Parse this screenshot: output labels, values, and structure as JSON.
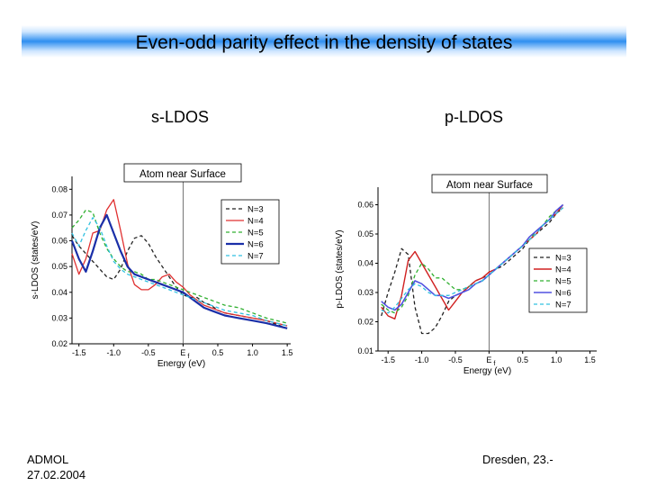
{
  "slide": {
    "title": "Even-odd parity effect in the density of states",
    "left_label": "s-LDOS",
    "right_label": "p-LDOS",
    "footer_left_line1": "ADMOL",
    "footer_left_line2": "27.02.2004",
    "footer_right": "Dresden, 23.-"
  },
  "chart_data": [
    {
      "type": "line",
      "title": "Atom near Surface",
      "xlabel": "Energy (eV)",
      "ylabel": "s-LDOS (states/eV)",
      "xlim": [
        -1.6,
        1.55
      ],
      "ylim": [
        0.02,
        0.085
      ],
      "xticks": [
        -1.5,
        -1.0,
        -0.5,
        0.0,
        0.5,
        1.0,
        1.5
      ],
      "xticklabels": [
        "-1.5",
        "-1.0",
        "-0.5",
        "E",
        "0.5",
        "1.0",
        "1.5"
      ],
      "fermi_subscript": "f",
      "yticks": [
        0.02,
        0.03,
        0.04,
        0.05,
        0.06,
        0.07,
        0.08
      ],
      "yticklabels": [
        "0.02",
        "0.03",
        "0.04",
        "0.05",
        "0.06",
        "0.07",
        "0.08"
      ],
      "fermi_line": 0.0,
      "legend_position": "right",
      "series": [
        {
          "name": "N=3",
          "color": "#222222",
          "dash": "4,3",
          "width": 1.3,
          "x": [
            -1.6,
            -1.5,
            -1.4,
            -1.3,
            -1.2,
            -1.1,
            -1.0,
            -0.9,
            -0.8,
            -0.7,
            -0.6,
            -0.5,
            -0.4,
            -0.3,
            -0.2,
            -0.1,
            0.0,
            0.1,
            0.2,
            0.3,
            0.4,
            0.5,
            0.6,
            0.8,
            1.0,
            1.2,
            1.5
          ],
          "y": [
            0.062,
            0.058,
            0.055,
            0.052,
            0.049,
            0.046,
            0.045,
            0.049,
            0.056,
            0.061,
            0.062,
            0.059,
            0.054,
            0.05,
            0.046,
            0.042,
            0.039,
            0.038,
            0.038,
            0.036,
            0.035,
            0.033,
            0.032,
            0.031,
            0.03,
            0.029,
            0.026
          ]
        },
        {
          "name": "N=4",
          "color": "#e03030",
          "dash": "",
          "width": 1.3,
          "x": [
            -1.6,
            -1.5,
            -1.4,
            -1.3,
            -1.2,
            -1.1,
            -1.0,
            -0.9,
            -0.8,
            -0.7,
            -0.6,
            -0.5,
            -0.4,
            -0.3,
            -0.2,
            -0.1,
            0.0,
            0.1,
            0.2,
            0.3,
            0.4,
            0.5,
            0.6,
            0.8,
            1.0,
            1.2,
            1.5
          ],
          "y": [
            0.055,
            0.047,
            0.053,
            0.063,
            0.064,
            0.072,
            0.076,
            0.064,
            0.051,
            0.043,
            0.041,
            0.041,
            0.043,
            0.046,
            0.047,
            0.044,
            0.042,
            0.039,
            0.037,
            0.035,
            0.034,
            0.033,
            0.032,
            0.031,
            0.03,
            0.029,
            0.027
          ]
        },
        {
          "name": "N=5",
          "color": "#30b030",
          "dash": "4,3",
          "width": 1.3,
          "x": [
            -1.6,
            -1.5,
            -1.4,
            -1.3,
            -1.2,
            -1.1,
            -1.0,
            -0.9,
            -0.8,
            -0.7,
            -0.6,
            -0.5,
            -0.4,
            -0.3,
            -0.2,
            -0.1,
            0.0,
            0.1,
            0.2,
            0.3,
            0.4,
            0.5,
            0.6,
            0.8,
            1.0,
            1.2,
            1.5
          ],
          "y": [
            0.065,
            0.068,
            0.072,
            0.071,
            0.063,
            0.057,
            0.053,
            0.05,
            0.048,
            0.048,
            0.047,
            0.045,
            0.045,
            0.044,
            0.043,
            0.042,
            0.041,
            0.04,
            0.039,
            0.038,
            0.037,
            0.036,
            0.035,
            0.034,
            0.032,
            0.03,
            0.028
          ]
        },
        {
          "name": "N=6",
          "color": "#1a2fa8",
          "dash": "",
          "width": 2.2,
          "x": [
            -1.6,
            -1.5,
            -1.4,
            -1.3,
            -1.2,
            -1.1,
            -1.0,
            -0.9,
            -0.8,
            -0.7,
            -0.6,
            -0.5,
            -0.4,
            -0.3,
            -0.2,
            -0.1,
            0.0,
            0.1,
            0.2,
            0.3,
            0.4,
            0.5,
            0.6,
            0.8,
            1.0,
            1.2,
            1.5
          ],
          "y": [
            0.06,
            0.053,
            0.048,
            0.056,
            0.065,
            0.07,
            0.063,
            0.056,
            0.05,
            0.047,
            0.046,
            0.045,
            0.044,
            0.043,
            0.042,
            0.041,
            0.04,
            0.038,
            0.036,
            0.034,
            0.033,
            0.032,
            0.031,
            0.03,
            0.029,
            0.028,
            0.026
          ]
        },
        {
          "name": "N=7",
          "color": "#30c0e0",
          "dash": "4,3",
          "width": 1.3,
          "x": [
            -1.6,
            -1.5,
            -1.4,
            -1.3,
            -1.2,
            -1.1,
            -1.0,
            -0.9,
            -0.8,
            -0.7,
            -0.6,
            -0.5,
            -0.4,
            -0.3,
            -0.2,
            -0.1,
            0.0,
            0.1,
            0.2,
            0.3,
            0.4,
            0.5,
            0.6,
            0.8,
            1.0,
            1.2,
            1.5
          ],
          "y": [
            0.063,
            0.058,
            0.064,
            0.069,
            0.065,
            0.058,
            0.052,
            0.049,
            0.047,
            0.046,
            0.045,
            0.044,
            0.043,
            0.042,
            0.041,
            0.04,
            0.039,
            0.038,
            0.037,
            0.036,
            0.035,
            0.034,
            0.033,
            0.032,
            0.031,
            0.029,
            0.027
          ]
        }
      ]
    },
    {
      "type": "line",
      "title": "Atom near Surface",
      "xlabel": "Energy (eV)",
      "ylabel": "p-LDOS (states/eV)",
      "xlim": [
        -1.65,
        1.6
      ],
      "ylim": [
        0.01,
        0.066
      ],
      "xticks": [
        -1.5,
        -1.0,
        -0.5,
        0.0,
        0.5,
        1.0,
        1.5
      ],
      "xticklabels": [
        "-1.5",
        "-1.0",
        "-0.5",
        "E",
        "0.5",
        "1.0",
        "1.5"
      ],
      "fermi_subscript": "f",
      "yticks": [
        0.01,
        0.02,
        0.03,
        0.04,
        0.05,
        0.06
      ],
      "yticklabels": [
        "0.01",
        "0.02",
        "0.03",
        "0.04",
        "0.05",
        "0.06"
      ],
      "fermi_line": 0.0,
      "legend_position": "right",
      "series": [
        {
          "name": "N=3",
          "color": "#222222",
          "dash": "4,3",
          "width": 1.3,
          "x": [
            -1.6,
            -1.5,
            -1.4,
            -1.3,
            -1.2,
            -1.1,
            -1.0,
            -0.9,
            -0.8,
            -0.7,
            -0.6,
            -0.5,
            -0.4,
            -0.3,
            -0.2,
            -0.1,
            0.0,
            0.1,
            0.2,
            0.3,
            0.4,
            0.5,
            0.6,
            0.7,
            0.8,
            0.9,
            1.0,
            1.1
          ],
          "y": [
            0.022,
            0.03,
            0.037,
            0.045,
            0.043,
            0.025,
            0.016,
            0.016,
            0.018,
            0.022,
            0.027,
            0.029,
            0.03,
            0.032,
            0.034,
            0.035,
            0.036,
            0.038,
            0.039,
            0.041,
            0.043,
            0.045,
            0.048,
            0.05,
            0.052,
            0.054,
            0.057,
            0.059
          ]
        },
        {
          "name": "N=4",
          "color": "#d02020",
          "dash": "",
          "width": 1.4,
          "x": [
            -1.6,
            -1.5,
            -1.4,
            -1.3,
            -1.2,
            -1.1,
            -1.0,
            -0.9,
            -0.8,
            -0.7,
            -0.6,
            -0.5,
            -0.4,
            -0.3,
            -0.2,
            -0.1,
            0.0,
            0.1,
            0.2,
            0.3,
            0.4,
            0.5,
            0.6,
            0.7,
            0.8,
            0.9,
            1.0,
            1.1
          ],
          "y": [
            0.025,
            0.022,
            0.021,
            0.029,
            0.041,
            0.044,
            0.04,
            0.036,
            0.032,
            0.028,
            0.024,
            0.027,
            0.03,
            0.032,
            0.034,
            0.035,
            0.037,
            0.038,
            0.04,
            0.042,
            0.044,
            0.046,
            0.048,
            0.05,
            0.053,
            0.055,
            0.057,
            0.06
          ]
        },
        {
          "name": "N=5",
          "color": "#30b030",
          "dash": "4,3",
          "width": 1.3,
          "x": [
            -1.6,
            -1.5,
            -1.4,
            -1.3,
            -1.2,
            -1.1,
            -1.0,
            -0.9,
            -0.8,
            -0.7,
            -0.6,
            -0.5,
            -0.4,
            -0.3,
            -0.2,
            -0.1,
            0.0,
            0.1,
            0.2,
            0.3,
            0.4,
            0.5,
            0.6,
            0.7,
            0.8,
            0.9,
            1.0,
            1.1
          ],
          "y": [
            0.026,
            0.024,
            0.023,
            0.025,
            0.029,
            0.036,
            0.04,
            0.038,
            0.035,
            0.035,
            0.033,
            0.031,
            0.031,
            0.032,
            0.033,
            0.034,
            0.036,
            0.038,
            0.04,
            0.042,
            0.044,
            0.046,
            0.048,
            0.051,
            0.053,
            0.056,
            0.058,
            0.06
          ]
        },
        {
          "name": "N=6",
          "color": "#5050e0",
          "dash": "",
          "width": 1.6,
          "x": [
            -1.6,
            -1.5,
            -1.4,
            -1.3,
            -1.2,
            -1.1,
            -1.0,
            -0.9,
            -0.8,
            -0.7,
            -0.6,
            -0.5,
            -0.4,
            -0.3,
            -0.2,
            -0.1,
            0.0,
            0.1,
            0.2,
            0.3,
            0.4,
            0.5,
            0.6,
            0.7,
            0.8,
            0.9,
            1.0,
            1.1
          ],
          "y": [
            0.027,
            0.025,
            0.024,
            0.026,
            0.03,
            0.034,
            0.033,
            0.031,
            0.029,
            0.029,
            0.028,
            0.029,
            0.03,
            0.031,
            0.033,
            0.034,
            0.036,
            0.038,
            0.04,
            0.042,
            0.044,
            0.046,
            0.049,
            0.051,
            0.053,
            0.055,
            0.058,
            0.06
          ]
        },
        {
          "name": "N=7",
          "color": "#30c0e0",
          "dash": "4,3",
          "width": 1.3,
          "x": [
            -1.6,
            -1.5,
            -1.4,
            -1.3,
            -1.2,
            -1.1,
            -1.0,
            -0.9,
            -0.8,
            -0.7,
            -0.6,
            -0.5,
            -0.4,
            -0.3,
            -0.2,
            -0.1,
            0.0,
            0.1,
            0.2,
            0.3,
            0.4,
            0.5,
            0.6,
            0.7,
            0.8,
            0.9,
            1.0,
            1.1
          ],
          "y": [
            0.024,
            0.023,
            0.025,
            0.028,
            0.031,
            0.033,
            0.032,
            0.03,
            0.029,
            0.029,
            0.029,
            0.03,
            0.031,
            0.032,
            0.033,
            0.034,
            0.036,
            0.038,
            0.04,
            0.042,
            0.044,
            0.046,
            0.048,
            0.05,
            0.053,
            0.055,
            0.057,
            0.059
          ]
        }
      ]
    }
  ]
}
